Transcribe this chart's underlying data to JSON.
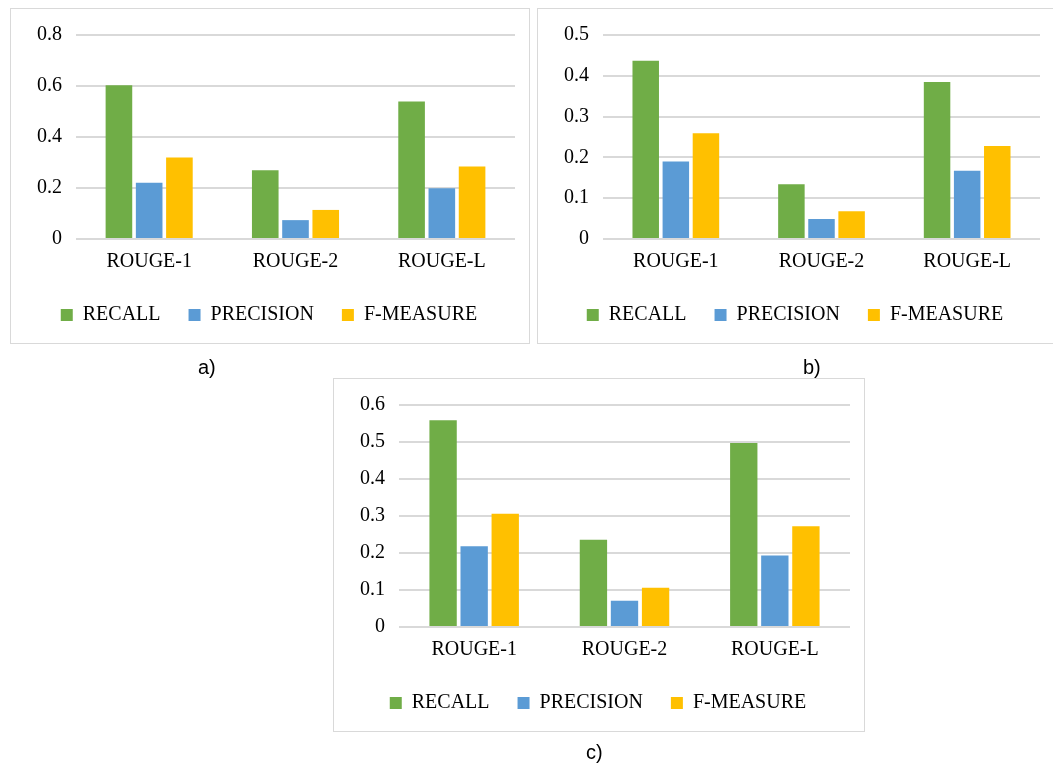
{
  "chart_data": [
    {
      "type": "bar",
      "categories": [
        "ROUGE-1",
        "ROUGE-2",
        "ROUGE-L"
      ],
      "series": [
        {
          "name": "RECALL",
          "color": "#70ad47",
          "values": [
            0.603,
            0.27,
            0.539
          ]
        },
        {
          "name": "PRECISION",
          "color": "#5b9bd5",
          "values": [
            0.221,
            0.074,
            0.199
          ]
        },
        {
          "name": "F-MEASURE",
          "color": "#ffc000",
          "values": [
            0.32,
            0.114,
            0.284
          ]
        }
      ],
      "ylim": [
        0,
        0.8
      ],
      "yticks": [
        0,
        0.2,
        0.4,
        0.6,
        0.8
      ],
      "grid": "y",
      "legend": "bottom",
      "annotations": [
        "a)"
      ]
    },
    {
      "type": "bar",
      "categories": [
        "ROUGE-1",
        "ROUGE-2",
        "ROUGE-L"
      ],
      "series": [
        {
          "name": "RECALL",
          "color": "#70ad47",
          "values": [
            0.437,
            0.134,
            0.385
          ]
        },
        {
          "name": "PRECISION",
          "color": "#5b9bd5",
          "values": [
            0.19,
            0.049,
            0.167
          ]
        },
        {
          "name": "F-MEASURE",
          "color": "#ffc000",
          "values": [
            0.259,
            0.068,
            0.228
          ]
        }
      ],
      "ylim": [
        0,
        0.5
      ],
      "yticks": [
        0,
        0.1,
        0.2,
        0.3,
        0.4,
        0.5
      ],
      "grid": "y",
      "legend": "bottom",
      "annotations": [
        "b)"
      ]
    },
    {
      "type": "bar",
      "categories": [
        "ROUGE-1",
        "ROUGE-2",
        "ROUGE-L"
      ],
      "series": [
        {
          "name": "RECALL",
          "color": "#70ad47",
          "values": [
            0.559,
            0.236,
            0.497
          ]
        },
        {
          "name": "PRECISION",
          "color": "#5b9bd5",
          "values": [
            0.218,
            0.071,
            0.193
          ]
        },
        {
          "name": "F-MEASURE",
          "color": "#ffc000",
          "values": [
            0.306,
            0.106,
            0.272
          ]
        }
      ],
      "ylim": [
        0,
        0.6
      ],
      "yticks": [
        0,
        0.1,
        0.2,
        0.3,
        0.4,
        0.5,
        0.6
      ],
      "grid": "y",
      "legend": "bottom",
      "annotations": [
        "c)"
      ]
    }
  ]
}
